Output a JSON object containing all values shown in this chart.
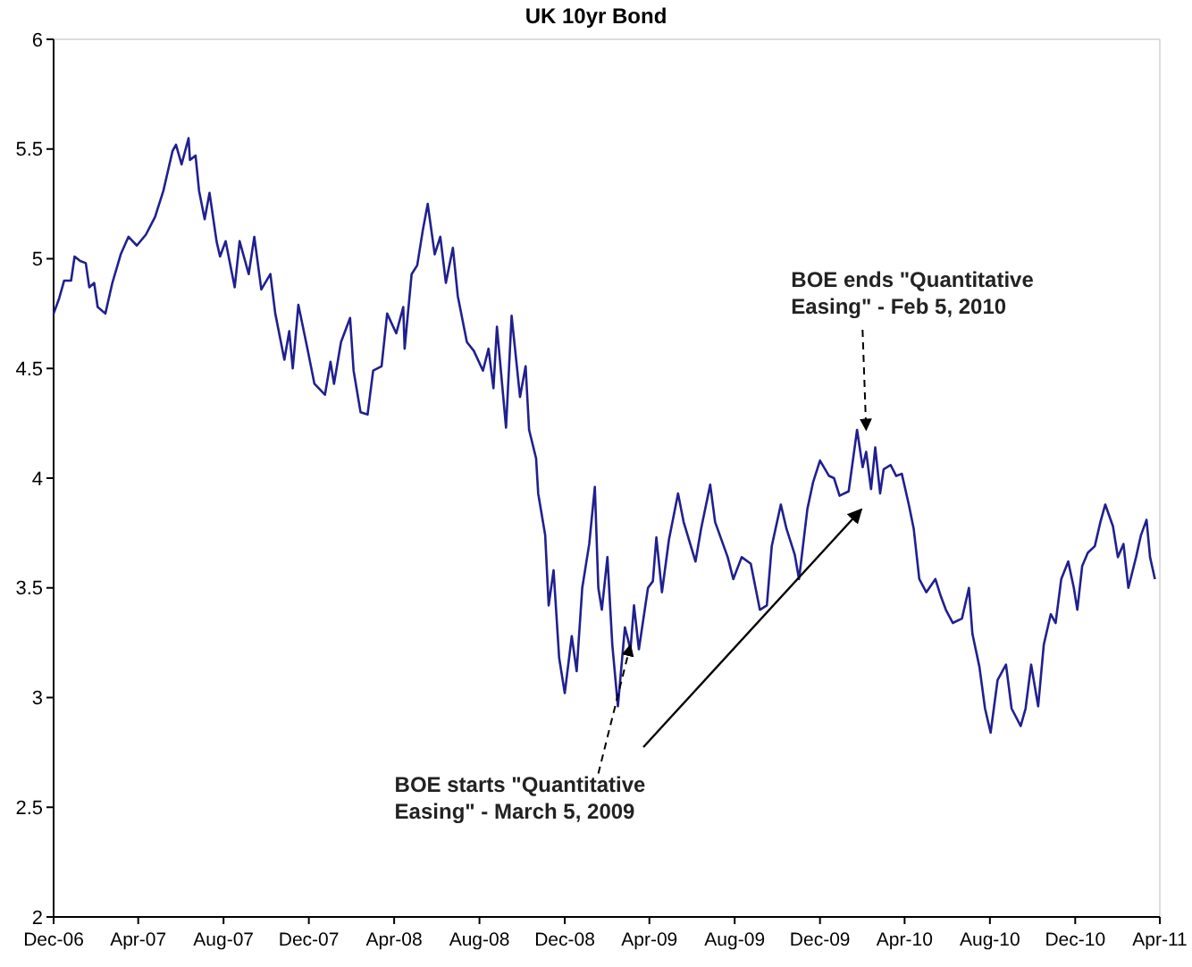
{
  "chart_data": {
    "type": "line",
    "title": "UK 10yr  Bond",
    "x": [
      "2006-12-01",
      "2006-12-09",
      "2006-12-16",
      "2006-12-26",
      "2006-12-31",
      "2007-01-08",
      "2007-01-16",
      "2007-01-21",
      "2007-01-28",
      "2007-02-02",
      "2007-02-13",
      "2007-02-23",
      "2007-03-07",
      "2007-03-18",
      "2007-03-30",
      "2007-04-12",
      "2007-04-25",
      "2007-05-07",
      "2007-05-20",
      "2007-05-25",
      "2007-06-02",
      "2007-06-12",
      "2007-06-14",
      "2007-06-22",
      "2007-06-27",
      "2007-07-05",
      "2007-07-12",
      "2007-07-22",
      "2007-07-27",
      "2007-08-04",
      "2007-08-17",
      "2007-08-24",
      "2007-09-06",
      "2007-09-14",
      "2007-09-24",
      "2007-10-07",
      "2007-10-14",
      "2007-10-27",
      "2007-11-03",
      "2007-11-08",
      "2007-11-16",
      "2007-11-29",
      "2007-12-09",
      "2007-12-24",
      "2008-01-01",
      "2008-01-06",
      "2008-01-16",
      "2008-01-29",
      "2008-02-03",
      "2008-02-13",
      "2008-02-23",
      "2008-03-02",
      "2008-03-14",
      "2008-03-22",
      "2008-04-04",
      "2008-04-14",
      "2008-04-16",
      "2008-04-26",
      "2008-05-04",
      "2008-05-12",
      "2008-05-19",
      "2008-05-29",
      "2008-06-06",
      "2008-06-14",
      "2008-06-24",
      "2008-07-01",
      "2008-07-14",
      "2008-07-24",
      "2008-08-06",
      "2008-08-14",
      "2008-08-21",
      "2008-08-26",
      "2008-09-08",
      "2008-09-16",
      "2008-09-28",
      "2008-10-06",
      "2008-10-11",
      "2008-10-21",
      "2008-10-24",
      "2008-11-03",
      "2008-11-08",
      "2008-11-15",
      "2008-11-23",
      "2008-12-01",
      "2008-12-11",
      "2008-12-18",
      "2008-12-26",
      "2009-01-05",
      "2009-01-13",
      "2009-01-18",
      "2009-01-23",
      "2009-01-31",
      "2009-02-07",
      "2009-02-15",
      "2009-02-25",
      "2009-03-05",
      "2009-03-10",
      "2009-03-17",
      "2009-03-30",
      "2009-04-06",
      "2009-04-11",
      "2009-04-19",
      "2009-04-29",
      "2009-05-12",
      "2009-05-20",
      "2009-06-06",
      "2009-06-14",
      "2009-06-27",
      "2009-07-04",
      "2009-07-22",
      "2009-07-30",
      "2009-08-11",
      "2009-08-24",
      "2009-09-06",
      "2009-09-16",
      "2009-09-23",
      "2009-10-06",
      "2009-10-14",
      "2009-10-26",
      "2009-11-01",
      "2009-11-13",
      "2009-11-21",
      "2009-12-01",
      "2009-12-14",
      "2009-12-21",
      "2009-12-29",
      "2010-01-11",
      "2010-01-23",
      "2010-01-31",
      "2010-02-05",
      "2010-02-12",
      "2010-02-18",
      "2010-02-25",
      "2010-03-02",
      "2010-03-12",
      "2010-03-20",
      "2010-03-28",
      "2010-04-07",
      "2010-04-14",
      "2010-04-22",
      "2010-05-02",
      "2010-05-15",
      "2010-05-23",
      "2010-05-30",
      "2010-06-09",
      "2010-06-22",
      "2010-07-02",
      "2010-07-07",
      "2010-07-17",
      "2010-07-25",
      "2010-08-02",
      "2010-08-12",
      "2010-08-24",
      "2010-09-01",
      "2010-09-14",
      "2010-09-21",
      "2010-09-29",
      "2010-10-09",
      "2010-10-17",
      "2010-10-27",
      "2010-11-03",
      "2010-11-11",
      "2010-11-21",
      "2010-11-29",
      "2010-12-04",
      "2010-12-11",
      "2010-12-19",
      "2010-12-29",
      "2011-01-06",
      "2011-01-13",
      "2011-01-24",
      "2011-01-31",
      "2011-02-08",
      "2011-02-15",
      "2011-02-26",
      "2011-03-05",
      "2011-03-13",
      "2011-03-18",
      "2011-03-25"
    ],
    "series": [
      {
        "color": "#202090",
        "values": [
          4.75,
          4.82,
          4.9,
          4.9,
          5.01,
          4.99,
          4.98,
          4.87,
          4.89,
          4.78,
          4.75,
          4.89,
          5.02,
          5.1,
          5.06,
          5.11,
          5.19,
          5.31,
          5.49,
          5.52,
          5.43,
          5.55,
          5.45,
          5.47,
          5.31,
          5.18,
          5.3,
          5.08,
          5.01,
          5.08,
          4.87,
          5.08,
          4.93,
          5.1,
          4.86,
          4.93,
          4.75,
          4.54,
          4.67,
          4.5,
          4.79,
          4.59,
          4.43,
          4.38,
          4.53,
          4.43,
          4.62,
          4.73,
          4.49,
          4.3,
          4.29,
          4.49,
          4.51,
          4.75,
          4.66,
          4.78,
          4.59,
          4.93,
          4.97,
          5.13,
          5.25,
          5.02,
          5.1,
          4.89,
          5.05,
          4.83,
          4.62,
          4.58,
          4.49,
          4.59,
          4.41,
          4.69,
          4.23,
          4.74,
          4.37,
          4.51,
          4.22,
          4.09,
          3.93,
          3.74,
          3.42,
          3.58,
          3.18,
          3.02,
          3.28,
          3.12,
          3.5,
          3.7,
          3.96,
          3.5,
          3.4,
          3.64,
          3.24,
          2.96,
          3.32,
          3.22,
          3.42,
          3.22,
          3.5,
          3.53,
          3.73,
          3.48,
          3.72,
          3.93,
          3.8,
          3.62,
          3.77,
          3.97,
          3.8,
          3.64,
          3.54,
          3.64,
          3.61,
          3.4,
          3.42,
          3.69,
          3.88,
          3.77,
          3.65,
          3.54,
          3.86,
          3.98,
          4.08,
          4.01,
          4.0,
          3.92,
          3.94,
          4.22,
          4.05,
          4.12,
          3.95,
          4.14,
          3.93,
          4.04,
          4.06,
          4.01,
          4.02,
          3.88,
          3.77,
          3.54,
          3.48,
          3.54,
          3.46,
          3.4,
          3.34,
          3.36,
          3.5,
          3.29,
          3.14,
          2.95,
          2.84,
          3.08,
          3.15,
          2.95,
          2.87,
          2.95,
          3.15,
          2.96,
          3.24,
          3.38,
          3.34,
          3.54,
          3.62,
          3.5,
          3.4,
          3.6,
          3.66,
          3.69,
          3.8,
          3.88,
          3.78,
          3.64,
          3.7,
          3.5,
          3.64,
          3.74,
          3.81,
          3.64,
          3.54
        ]
      }
    ],
    "xlim": [
      "2006-12-01",
      "2011-04-01"
    ],
    "xticks": [
      {
        "value": "2006-12-01",
        "label": "Dec-06"
      },
      {
        "value": "2007-04-01",
        "label": "Apr-07"
      },
      {
        "value": "2007-08-01",
        "label": "Aug-07"
      },
      {
        "value": "2007-12-01",
        "label": "Dec-07"
      },
      {
        "value": "2008-04-01",
        "label": "Apr-08"
      },
      {
        "value": "2008-08-01",
        "label": "Aug-08"
      },
      {
        "value": "2008-12-01",
        "label": "Dec-08"
      },
      {
        "value": "2009-04-01",
        "label": "Apr-09"
      },
      {
        "value": "2009-08-01",
        "label": "Aug-09"
      },
      {
        "value": "2009-12-01",
        "label": "Dec-09"
      },
      {
        "value": "2010-04-01",
        "label": "Apr-10"
      },
      {
        "value": "2010-08-01",
        "label": "Aug-10"
      },
      {
        "value": "2010-12-01",
        "label": "Dec-10"
      },
      {
        "value": "2011-04-01",
        "label": "Apr-11"
      }
    ],
    "ylim": [
      2,
      6
    ],
    "yticks": [
      2,
      2.5,
      3,
      3.5,
      4,
      4.5,
      5,
      5.5,
      6
    ],
    "annotations": [
      {
        "text": "BOE starts \"Quantitative Easing\" - March 5, 2009",
        "x": "2009-03-05",
        "y": 3.24
      },
      {
        "text": "BOE ends \"Quantitative Easing\" - Feb 5, 2010",
        "x": "2010-02-05",
        "y": 4.22
      }
    ],
    "grid": false,
    "marker": "none",
    "line_style": "solid"
  }
}
